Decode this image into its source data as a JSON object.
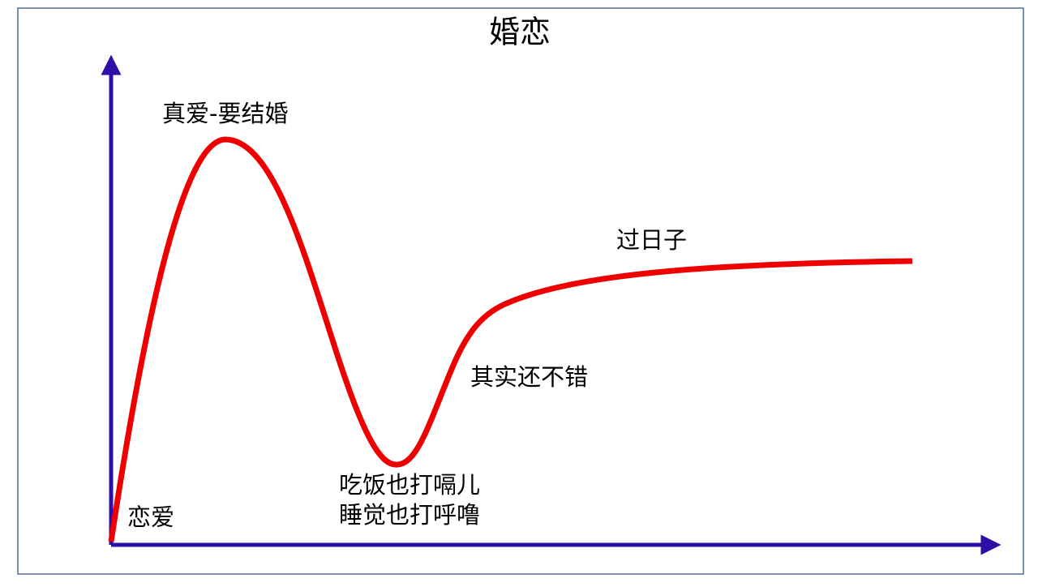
{
  "title": "婚恋",
  "labels": {
    "peak": "真爱-要结婚",
    "plateau": "过日子",
    "rise": "其实还不错",
    "trough": [
      "吃饭也打嗝儿",
      "睡觉也打呼噜"
    ],
    "start": "恋爱"
  }
}
